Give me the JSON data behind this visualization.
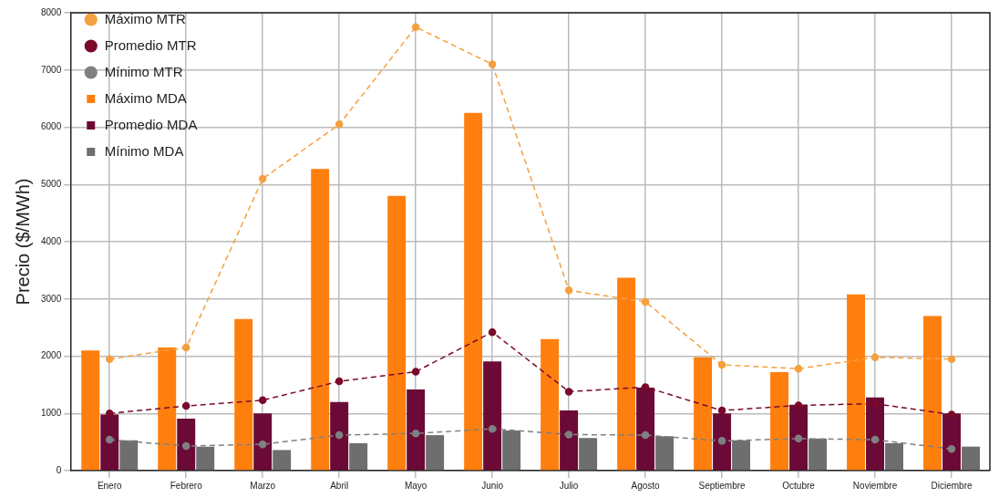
{
  "chart_data": {
    "type": "bar",
    "ylabel": "Precio ($/MWh)",
    "categories": [
      "Enero",
      "Febrero",
      "Marzo",
      "Abril",
      "Mayo",
      "Junio",
      "Julio",
      "Agosto",
      "Septiembre",
      "Octubre",
      "Noviembre",
      "Diciembre"
    ],
    "series": [
      {
        "name": "Máximo MTR",
        "type": "line",
        "color": "#f5a040",
        "line_style": "dashed",
        "marker": "circle",
        "values": [
          1950,
          2150,
          5100,
          6050,
          7750,
          7100,
          3150,
          2950,
          1850,
          1780,
          1980,
          1950
        ]
      },
      {
        "name": "Promedio MTR",
        "type": "line",
        "color": "#7a0a2a",
        "line_style": "dashed",
        "marker": "circle",
        "values": [
          1000,
          1130,
          1230,
          1560,
          1730,
          2420,
          1380,
          1460,
          1050,
          1140,
          1170,
          980
        ]
      },
      {
        "name": "Mínimo MTR",
        "type": "line",
        "color": "#808080",
        "line_style": "dashed",
        "marker": "circle",
        "values": [
          540,
          430,
          460,
          620,
          650,
          730,
          630,
          620,
          520,
          560,
          540,
          380
        ]
      },
      {
        "name": "Máximo MDA",
        "type": "bar",
        "color": "#ff7f0e",
        "values": [
          2100,
          2150,
          2650,
          5270,
          4800,
          6250,
          2300,
          3370,
          1980,
          1720,
          3080,
          2700
        ]
      },
      {
        "name": "Promedio MDA",
        "type": "bar",
        "color": "#6b0a36",
        "values": [
          980,
          910,
          1000,
          1200,
          1420,
          1910,
          1050,
          1450,
          1000,
          1150,
          1280,
          1000
        ]
      },
      {
        "name": "Mínimo MDA",
        "type": "bar",
        "color": "#6e6e6e",
        "values": [
          530,
          420,
          360,
          480,
          620,
          700,
          570,
          600,
          530,
          560,
          480,
          420
        ]
      }
    ],
    "ylim": [
      0,
      8000
    ],
    "yticks": [
      0,
      1000,
      2000,
      3000,
      4000,
      5000,
      6000,
      7000,
      8000
    ],
    "grid": true,
    "legend": "top left"
  }
}
